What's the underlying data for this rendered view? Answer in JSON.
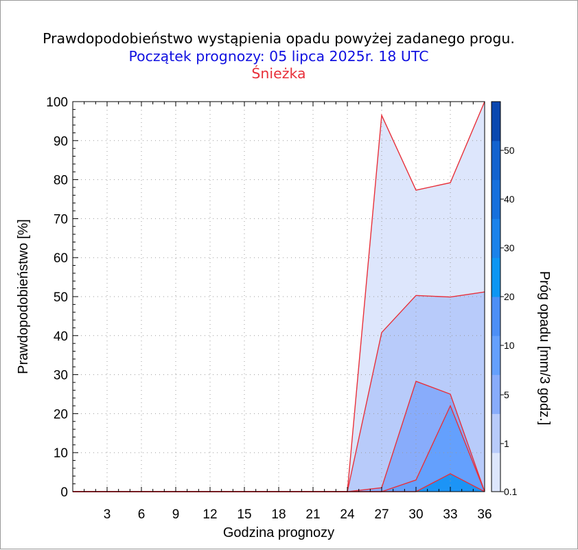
{
  "chart_data": {
    "type": "area",
    "title": "Prawdopodobieństwo wystąpienia opadu powyżej zadanego progu.",
    "subtitle": "Początek prognozy: 05 lipca 2025r. 18 UTC",
    "location": "Śnieżka",
    "xlabel": "Godzina prognozy",
    "ylabel": "Prawdopodobieństwo [%]",
    "colorbar_label": "Próg opadu [mm/3 godz.]",
    "xlim": [
      0,
      36
    ],
    "ylim": [
      0,
      100
    ],
    "x_ticks": [
      "3",
      "6",
      "9",
      "12",
      "15",
      "18",
      "21",
      "24",
      "27",
      "30",
      "33",
      "36"
    ],
    "y_ticks": [
      "0",
      "10",
      "20",
      "30",
      "40",
      "50",
      "60",
      "70",
      "80",
      "90",
      "100"
    ],
    "grid": true,
    "x": [
      0,
      3,
      6,
      9,
      12,
      15,
      18,
      21,
      24,
      27,
      30,
      33,
      36
    ],
    "series": [
      {
        "threshold": "0.1",
        "color": "#dde6fc",
        "values": [
          0,
          0,
          0,
          0,
          0,
          0,
          0,
          0,
          0,
          96.5,
          77.3,
          79.2,
          100
        ]
      },
      {
        "threshold": "1",
        "color": "#b8cbfa",
        "values": [
          0,
          0,
          0,
          0,
          0,
          0,
          0,
          0,
          0,
          40.8,
          50.3,
          49.9,
          51.2
        ]
      },
      {
        "threshold": "5",
        "color": "#88acfb",
        "values": [
          0,
          0,
          0,
          0,
          0,
          0,
          0,
          0,
          0,
          1.0,
          28.3,
          25.0,
          0
        ]
      },
      {
        "threshold": "10",
        "color": "#64a0fd",
        "values": [
          0,
          0,
          0,
          0,
          0,
          0,
          0,
          0,
          0,
          0,
          3.0,
          22.0,
          0
        ]
      },
      {
        "threshold": "20",
        "color": "#1c94f6",
        "values": [
          0,
          0,
          0,
          0,
          0,
          0,
          0,
          0,
          0,
          0,
          0,
          4.6,
          0
        ]
      }
    ],
    "line_color": "#e8303a",
    "colorbar": {
      "ticks": [
        "0.1",
        "1",
        "5",
        "10",
        "20",
        "30",
        "40",
        "50"
      ],
      "colors": [
        "#dde6fc",
        "#b8cbfa",
        "#88acfb",
        "#64a0fd",
        "#4c8ff6",
        "#0d96f3",
        "#1a82ea",
        "#1670dd",
        "#1363cf",
        "#0a48b0"
      ]
    }
  }
}
